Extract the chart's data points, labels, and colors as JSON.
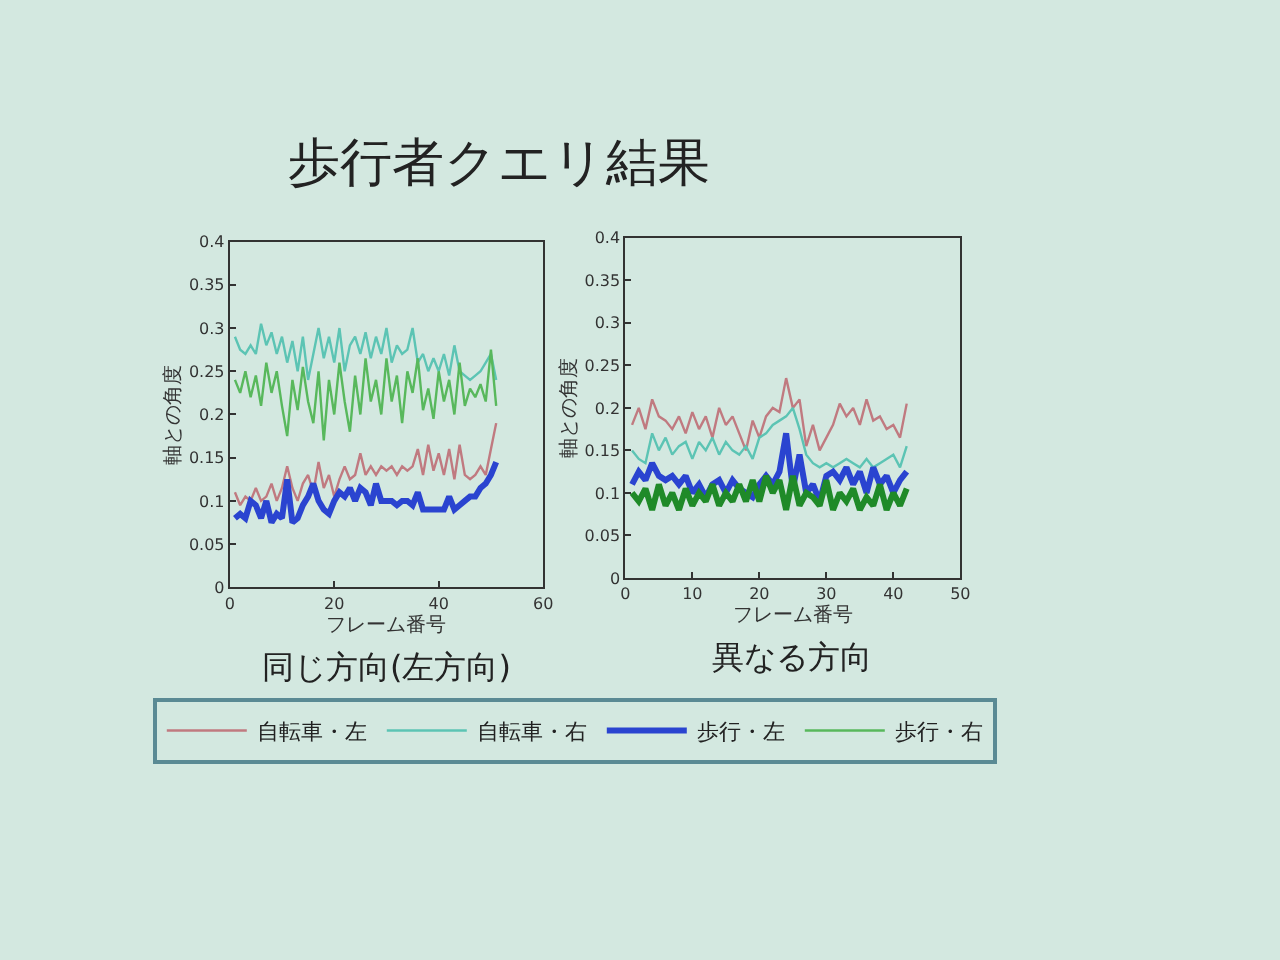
{
  "chart_data": [
    {
      "type": "line",
      "title": "歩行者クエリ結果",
      "subtitle": "同じ方向(左方向)",
      "xlabel": "フレーム番号",
      "ylabel": "軸との角度",
      "legend": "bottom",
      "x": [
        1,
        2,
        3,
        4,
        5,
        6,
        7,
        8,
        9,
        10,
        11,
        12,
        13,
        14,
        15,
        16,
        17,
        18,
        19,
        20,
        21,
        22,
        23,
        24,
        25,
        26,
        27,
        28,
        29,
        30,
        31,
        32,
        33,
        34,
        35,
        36,
        37,
        38,
        39,
        40,
        41,
        42,
        43,
        44,
        45,
        46,
        47,
        48,
        49,
        50,
        51
      ],
      "xlim": [
        0,
        60
      ],
      "xticks": [
        0,
        20,
        40,
        60
      ],
      "ylim": [
        0,
        0.4
      ],
      "yticks": [
        0,
        0.05,
        0.1,
        0.15,
        0.2,
        0.25,
        0.3,
        0.35,
        0.4
      ],
      "series": [
        {
          "name": "自転車・左",
          "color": "#c07a80",
          "values": [
            0.11,
            0.095,
            0.105,
            0.1,
            0.115,
            0.1,
            0.105,
            0.12,
            0.1,
            0.115,
            0.14,
            0.115,
            0.1,
            0.12,
            0.13,
            0.11,
            0.145,
            0.115,
            0.13,
            0.105,
            0.125,
            0.14,
            0.125,
            0.13,
            0.155,
            0.13,
            0.14,
            0.13,
            0.14,
            0.135,
            0.14,
            0.13,
            0.14,
            0.135,
            0.14,
            0.16,
            0.13,
            0.165,
            0.135,
            0.155,
            0.13,
            0.16,
            0.125,
            0.165,
            0.13,
            0.125,
            0.13,
            0.14,
            0.13,
            0.16,
            0.19
          ]
        },
        {
          "name": "自転車・右",
          "color": "#5cc4b4",
          "values": [
            0.29,
            0.275,
            0.27,
            0.28,
            0.27,
            0.305,
            0.28,
            0.295,
            0.27,
            0.29,
            0.26,
            0.285,
            0.25,
            0.29,
            0.24,
            0.27,
            0.3,
            0.265,
            0.29,
            0.26,
            0.3,
            0.25,
            0.28,
            0.29,
            0.27,
            0.295,
            0.265,
            0.29,
            0.27,
            0.3,
            0.26,
            0.28,
            0.27,
            0.275,
            0.3,
            0.26,
            0.27,
            0.25,
            0.265,
            0.25,
            0.27,
            0.245,
            0.28,
            0.25,
            0.245,
            0.24,
            0.245,
            0.25,
            0.26,
            0.27,
            0.24
          ]
        },
        {
          "name": "歩行・左",
          "color": "#2a44d0",
          "values": [
            0.08,
            0.085,
            0.08,
            0.1,
            0.095,
            0.08,
            0.1,
            0.075,
            0.085,
            0.08,
            0.125,
            0.075,
            0.08,
            0.095,
            0.105,
            0.12,
            0.1,
            0.09,
            0.085,
            0.1,
            0.11,
            0.105,
            0.115,
            0.1,
            0.115,
            0.11,
            0.095,
            0.12,
            0.1,
            0.1,
            0.1,
            0.095,
            0.1,
            0.1,
            0.095,
            0.11,
            0.09,
            0.09,
            0.09,
            0.09,
            0.09,
            0.105,
            0.09,
            0.095,
            0.1,
            0.105,
            0.105,
            0.115,
            0.12,
            0.13,
            0.145
          ]
        },
        {
          "name": "歩行・右",
          "color": "#58b85c",
          "values": [
            0.24,
            0.225,
            0.25,
            0.22,
            0.245,
            0.21,
            0.26,
            0.225,
            0.25,
            0.21,
            0.175,
            0.24,
            0.205,
            0.255,
            0.215,
            0.19,
            0.25,
            0.17,
            0.24,
            0.2,
            0.26,
            0.215,
            0.18,
            0.245,
            0.2,
            0.265,
            0.215,
            0.24,
            0.2,
            0.265,
            0.215,
            0.245,
            0.19,
            0.25,
            0.225,
            0.265,
            0.205,
            0.23,
            0.195,
            0.25,
            0.215,
            0.24,
            0.2,
            0.26,
            0.21,
            0.23,
            0.22,
            0.235,
            0.215,
            0.275,
            0.21
          ]
        }
      ]
    },
    {
      "type": "line",
      "subtitle": "異なる方向",
      "xlabel": "フレーム番号",
      "ylabel": "軸との角度",
      "x": [
        1,
        2,
        3,
        4,
        5,
        6,
        7,
        8,
        9,
        10,
        11,
        12,
        13,
        14,
        15,
        16,
        17,
        18,
        19,
        20,
        21,
        22,
        23,
        24,
        25,
        26,
        27,
        28,
        29,
        30,
        31,
        32,
        33,
        34,
        35,
        36,
        37,
        38,
        39,
        40,
        41,
        42
      ],
      "xlim": [
        0,
        50
      ],
      "xticks": [
        0,
        10,
        20,
        30,
        40,
        50
      ],
      "ylim": [
        0,
        0.4
      ],
      "yticks": [
        0,
        0.05,
        0.1,
        0.15,
        0.2,
        0.25,
        0.3,
        0.35,
        0.4
      ],
      "series": [
        {
          "color": "#c07a80",
          "values": [
            0.18,
            0.2,
            0.175,
            0.21,
            0.19,
            0.185,
            0.175,
            0.19,
            0.17,
            0.195,
            0.175,
            0.19,
            0.165,
            0.2,
            0.18,
            0.19,
            0.17,
            0.15,
            0.185,
            0.165,
            0.19,
            0.2,
            0.195,
            0.235,
            0.2,
            0.21,
            0.155,
            0.18,
            0.15,
            0.165,
            0.18,
            0.205,
            0.19,
            0.2,
            0.18,
            0.21,
            0.185,
            0.19,
            0.175,
            0.18,
            0.165,
            0.205
          ]
        },
        {
          "color": "#5cc4b4",
          "values": [
            0.15,
            0.14,
            0.135,
            0.17,
            0.15,
            0.165,
            0.145,
            0.155,
            0.16,
            0.14,
            0.16,
            0.15,
            0.165,
            0.145,
            0.16,
            0.15,
            0.145,
            0.155,
            0.14,
            0.165,
            0.17,
            0.18,
            0.185,
            0.19,
            0.2,
            0.175,
            0.145,
            0.135,
            0.13,
            0.135,
            0.13,
            0.135,
            0.14,
            0.135,
            0.13,
            0.14,
            0.13,
            0.135,
            0.14,
            0.145,
            0.13,
            0.155
          ]
        },
        {
          "color": "#2a44d0",
          "values": [
            0.11,
            0.125,
            0.115,
            0.135,
            0.12,
            0.115,
            0.12,
            0.11,
            0.12,
            0.1,
            0.11,
            0.095,
            0.11,
            0.115,
            0.1,
            0.115,
            0.105,
            0.1,
            0.095,
            0.11,
            0.12,
            0.11,
            0.125,
            0.17,
            0.105,
            0.145,
            0.1,
            0.11,
            0.09,
            0.12,
            0.125,
            0.115,
            0.13,
            0.11,
            0.125,
            0.1,
            0.13,
            0.11,
            0.12,
            0.1,
            0.115,
            0.125
          ]
        },
        {
          "color": "#1f8a28",
          "values": [
            0.1,
            0.09,
            0.105,
            0.08,
            0.11,
            0.085,
            0.1,
            0.08,
            0.105,
            0.085,
            0.1,
            0.09,
            0.11,
            0.085,
            0.1,
            0.09,
            0.11,
            0.09,
            0.115,
            0.09,
            0.12,
            0.1,
            0.115,
            0.08,
            0.12,
            0.085,
            0.1,
            0.095,
            0.085,
            0.115,
            0.08,
            0.1,
            0.09,
            0.105,
            0.08,
            0.095,
            0.085,
            0.11,
            0.08,
            0.1,
            0.085,
            0.105
          ]
        }
      ]
    }
  ]
}
